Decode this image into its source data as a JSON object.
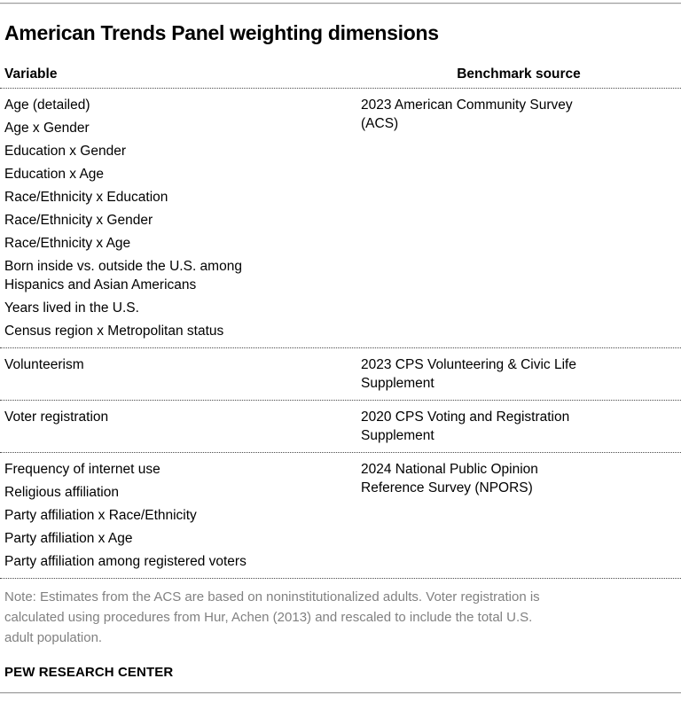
{
  "page": {
    "note": "Note: Estimates from the ACS are based on noninstitutionalized adults. Voter registration is\ncalculated using procedures from Hur, Achen (2013) and rescaled to include the total U.S.\nadult population.",
    "source": "PEW RESEARCH CENTER"
  },
  "chart_data": {
    "type": "table",
    "title": "American Trends Panel weighting dimensions",
    "columns": [
      "Variable",
      "Benchmark source"
    ],
    "sections": [
      {
        "variables": [
          "Age (detailed)",
          "Age x Gender",
          "Education x Gender",
          "Education x Age",
          "Race/Ethnicity x Education",
          "Race/Ethnicity x Gender",
          "Race/Ethnicity x Age",
          "Born inside vs. outside the U.S. among\nHispanics and Asian Americans",
          "Years lived in the U.S.",
          "Census region x Metropolitan status"
        ],
        "benchmark": "2023 American Community Survey\n(ACS)"
      },
      {
        "variables": [
          "Volunteerism"
        ],
        "benchmark": "2023 CPS Volunteering & Civic Life\nSupplement"
      },
      {
        "variables": [
          "Voter registration"
        ],
        "benchmark": "2020 CPS Voting and Registration\nSupplement"
      },
      {
        "variables": [
          "Frequency of internet use",
          "Religious affiliation",
          "Party affiliation x Race/Ethnicity",
          "Party affiliation x Age",
          "Party affiliation among registered voters"
        ],
        "benchmark": "2024 National Public Opinion\nReference Survey (NPORS)"
      }
    ],
    "layout": {
      "legend": "none",
      "grid": "dotted-row-separators"
    }
  },
  "colors": {
    "text": "#000000",
    "note_gray": "#818181",
    "rule_gray": "#9c9c9c",
    "separator_dotted": "#4a4a4a",
    "background": "#ffffff"
  }
}
